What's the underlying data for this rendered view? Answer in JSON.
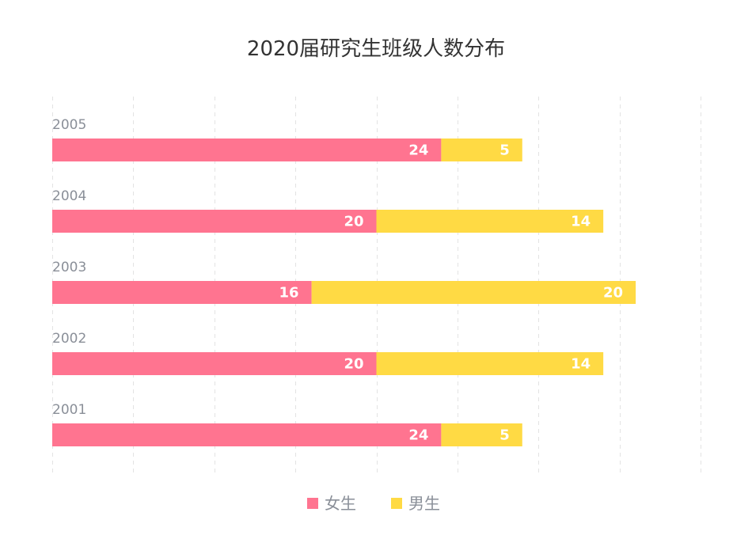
{
  "chart_data": {
    "type": "bar",
    "orientation": "horizontal",
    "stacked": true,
    "title": "2020届研究生班级人数分布",
    "categories": [
      "2005",
      "2004",
      "2003",
      "2002",
      "2001"
    ],
    "series": [
      {
        "name": "女生",
        "color": "#FF7490",
        "values": [
          24,
          20,
          16,
          20,
          24
        ]
      },
      {
        "name": "男生",
        "color": "#FFDA44",
        "values": [
          5,
          14,
          20,
          14,
          5
        ]
      }
    ],
    "xlim": [
      0,
      40
    ],
    "grid": true,
    "legend": "bottom-center"
  }
}
